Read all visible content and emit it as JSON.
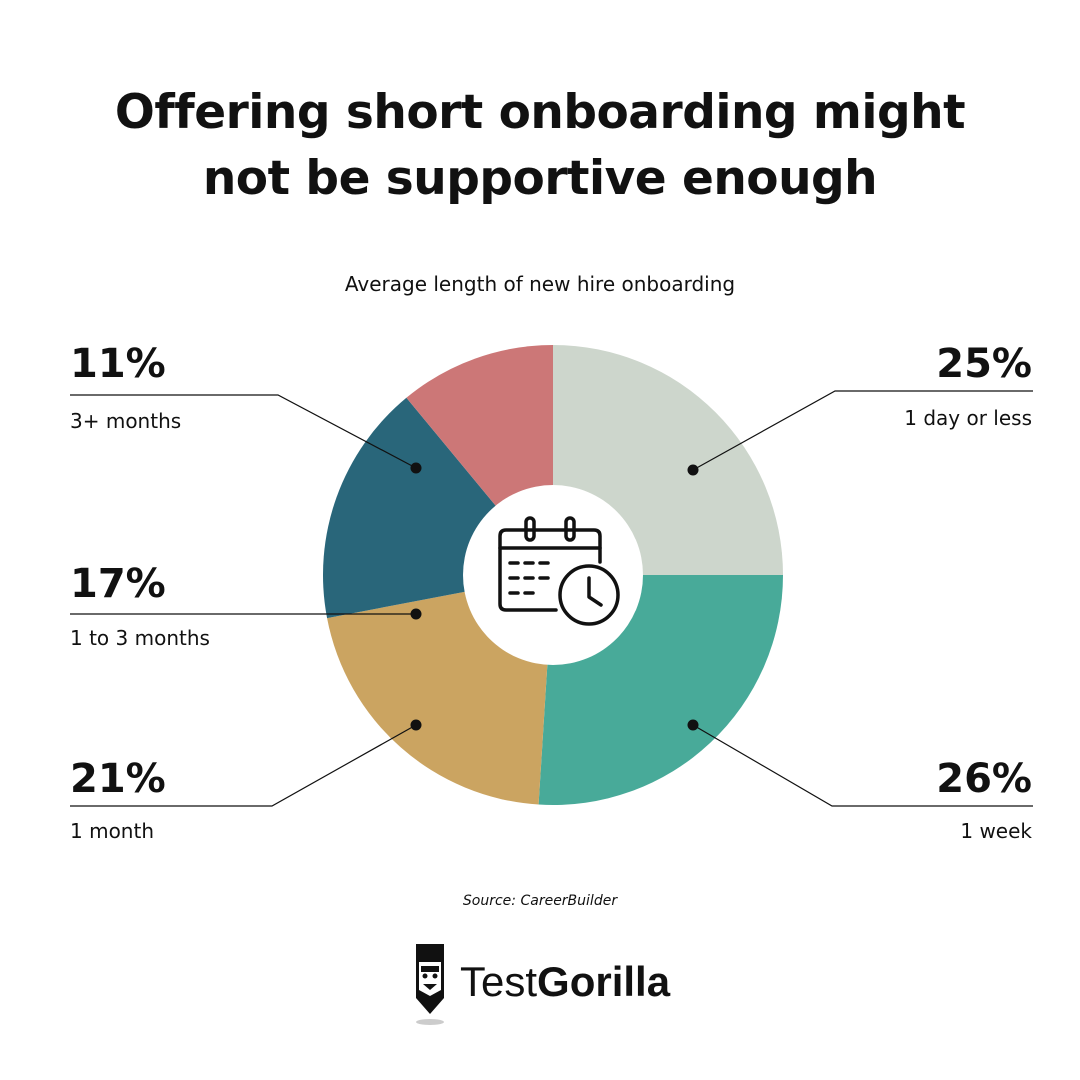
{
  "title_line1": "Offering short onboarding might",
  "title_line2": "not be supportive enough",
  "source": "Source: CareerBuilder",
  "brand": {
    "name_light": "Test",
    "name_bold": "Gorilla"
  },
  "icons": {
    "center": "calendar-clock-icon",
    "logo": "gorilla-logo-icon"
  },
  "chart_data": {
    "type": "pie",
    "variant": "donut",
    "title": "Average length of new hire onboarding",
    "slices": [
      {
        "label": "1 day or less",
        "display": "25%",
        "value": 25,
        "color": "#cdd6cc"
      },
      {
        "label": "1 week",
        "display": "26%",
        "value": 26,
        "color": "#48aa99"
      },
      {
        "label": "1 month",
        "display": "21%",
        "value": 21,
        "color": "#cba461"
      },
      {
        "label": "1 to 3 months",
        "display": "17%",
        "value": 17,
        "color": "#29667a"
      },
      {
        "label": "3+ months",
        "display": "11%",
        "value": 11,
        "color": "#cc7777"
      }
    ]
  }
}
